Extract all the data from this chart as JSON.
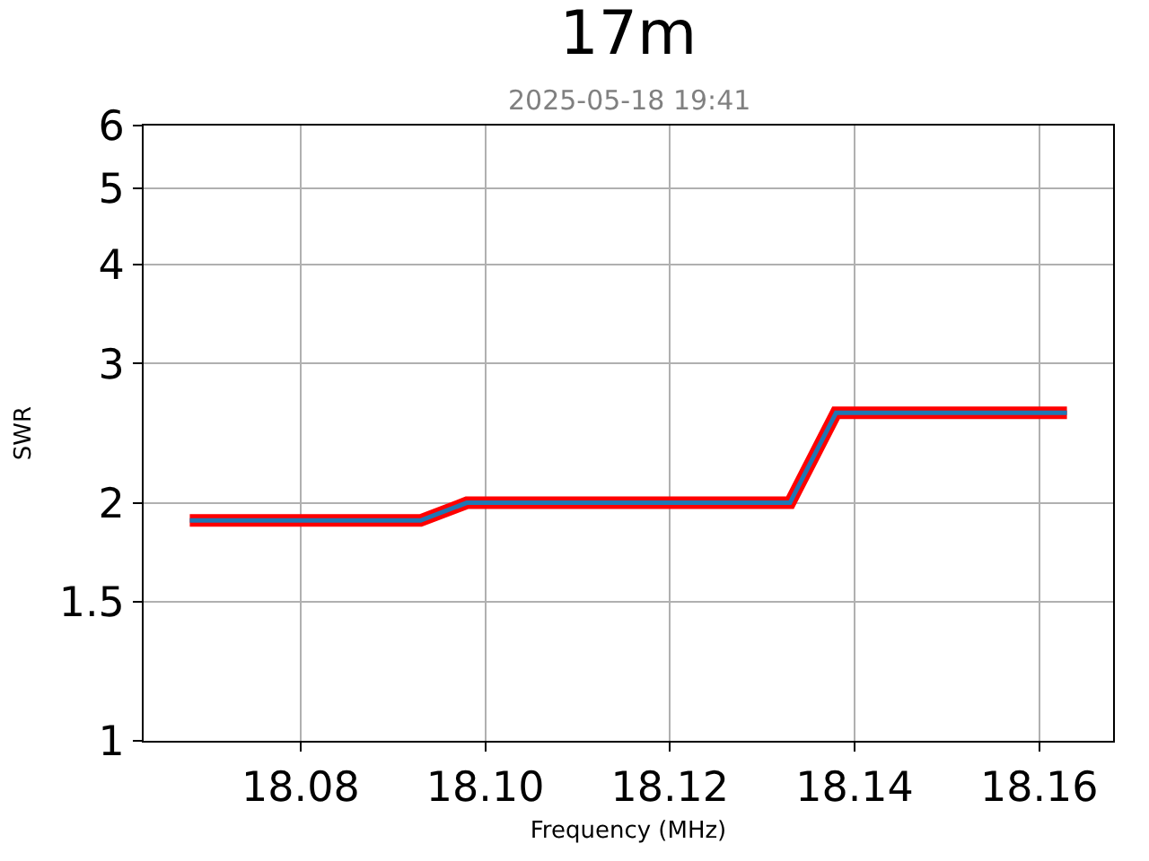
{
  "chart_data": {
    "type": "line",
    "title": "17m",
    "subtitle": "2025-05-18 19:41",
    "xlabel": "Frequency (MHz)",
    "ylabel": "SWR",
    "x": [
      18.068,
      18.073,
      18.078,
      18.083,
      18.088,
      18.093,
      18.098,
      18.103,
      18.108,
      18.113,
      18.118,
      18.123,
      18.128,
      18.133,
      18.138,
      18.143,
      18.148,
      18.153,
      18.158,
      18.163
    ],
    "series": [
      {
        "color": "#ff0000",
        "values": [
          1.9,
          1.9,
          1.9,
          1.9,
          1.9,
          1.9,
          2.0,
          2.0,
          2.0,
          2.0,
          2.0,
          2.0,
          2.0,
          2.0,
          2.6,
          2.6,
          2.6,
          2.6,
          2.6,
          2.6
        ]
      },
      {
        "color": "#1f77b4",
        "values": [
          1.9,
          1.9,
          1.9,
          1.9,
          1.9,
          1.9,
          2.0,
          2.0,
          2.0,
          2.0,
          2.0,
          2.0,
          2.0,
          2.0,
          2.6,
          2.6,
          2.6,
          2.6,
          2.6,
          2.6
        ]
      }
    ],
    "xlim": [
      18.063,
      18.168
    ],
    "xticks": [
      18.08,
      {
        "value": 18.1,
        "label": "18.10"
      },
      18.12,
      18.14,
      18.16
    ],
    "ylim": [
      1,
      6
    ],
    "yticks": [
      1,
      1.5,
      2,
      3,
      4,
      5,
      6
    ],
    "log": "y",
    "grid": true,
    "marker": "none",
    "line_style": "solid"
  }
}
